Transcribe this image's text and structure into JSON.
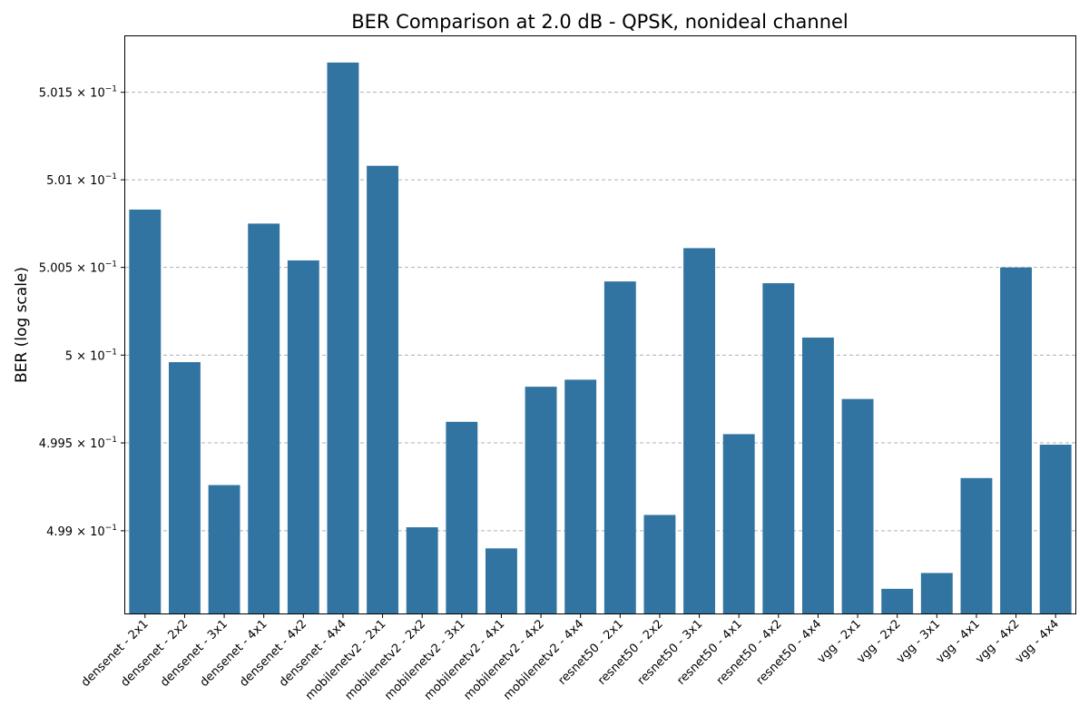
{
  "chart_data": {
    "type": "bar",
    "title": "BER Comparison at 2.0 dB - QPSK, nonideal channel",
    "xlabel": "",
    "ylabel": "BER (log scale)",
    "yscale": "log",
    "ylim": [
      0.49853,
      0.50182
    ],
    "yticks": [
      0.499,
      0.4995,
      0.5,
      0.5005,
      0.501,
      0.5015
    ],
    "ytick_labels": [
      {
        "mantissa": "4.99",
        "base": "10",
        "exp": "−1"
      },
      {
        "mantissa": "4.995",
        "base": "10",
        "exp": "−1"
      },
      {
        "mantissa": "5",
        "base": "10",
        "exp": "−1"
      },
      {
        "mantissa": "5.005",
        "base": "10",
        "exp": "−1"
      },
      {
        "mantissa": "5.01",
        "base": "10",
        "exp": "−1"
      },
      {
        "mantissa": "5.015",
        "base": "10",
        "exp": "−1"
      }
    ],
    "grid": "y-dashed",
    "bar_color": "#3274a1",
    "categories": [
      "densenet - 2x1",
      "densenet - 2x2",
      "densenet - 3x1",
      "densenet - 4x1",
      "densenet - 4x2",
      "densenet - 4x4",
      "mobilenetv2 - 2x1",
      "mobilenetv2 - 2x2",
      "mobilenetv2 - 3x1",
      "mobilenetv2 - 4x1",
      "mobilenetv2 - 4x2",
      "mobilenetv2 - 4x4",
      "resnet50 - 2x1",
      "resnet50 - 2x2",
      "resnet50 - 3x1",
      "resnet50 - 4x1",
      "resnet50 - 4x2",
      "resnet50 - 4x4",
      "vgg - 2x1",
      "vgg - 2x2",
      "vgg - 3x1",
      "vgg - 4x1",
      "vgg - 4x2",
      "vgg - 4x4"
    ],
    "values": [
      0.50083,
      0.49996,
      0.49926,
      0.50075,
      0.50054,
      0.50167,
      0.50108,
      0.49902,
      0.49962,
      0.4989,
      0.49982,
      0.49986,
      0.50042,
      0.49909,
      0.50061,
      0.49955,
      0.50041,
      0.5001,
      0.49975,
      0.49867,
      0.49876,
      0.4993,
      0.5005,
      0.49949
    ]
  }
}
